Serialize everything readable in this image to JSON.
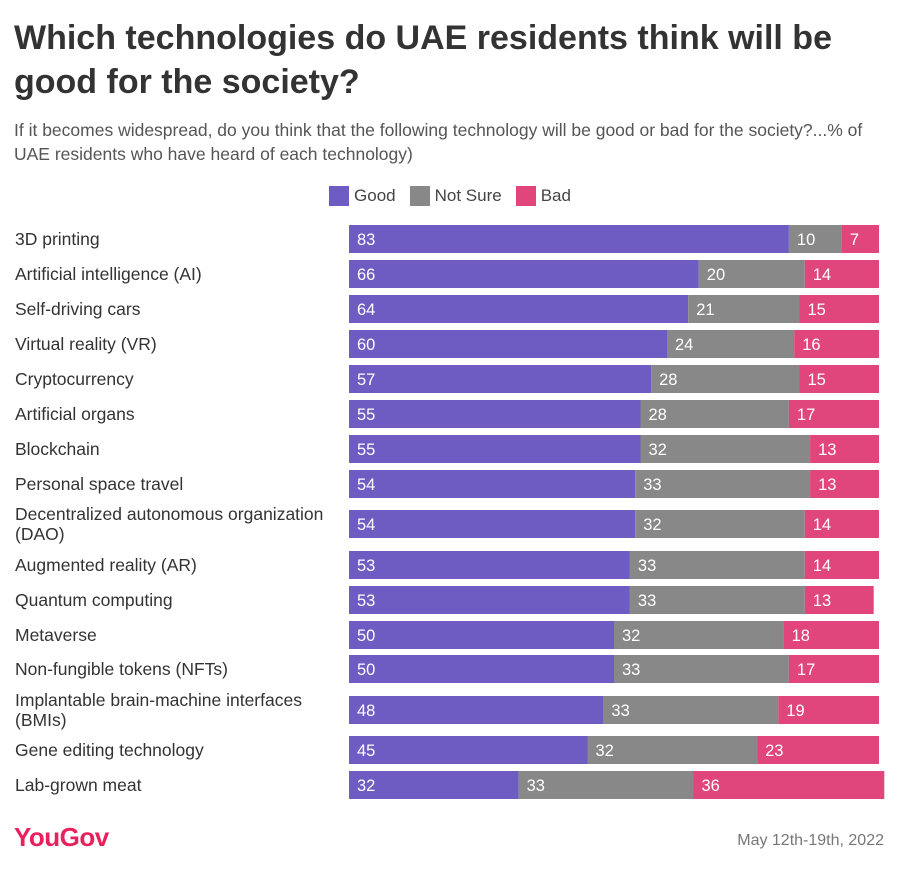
{
  "title": "Which technologies do UAE residents think will be good for the society?",
  "subtitle": "If it becomes widespread, do you think that the following technology will be good or bad for the society?...% of UAE residents who have heard of each technology)",
  "colors": {
    "good": "#6e5cc3",
    "not_sure": "#888888",
    "bad": "#e0457b"
  },
  "footer": {
    "logo": "YouGov",
    "date": "May 12th-19th, 2022"
  },
  "chart_data": {
    "type": "bar",
    "orientation": "horizontal",
    "stacked": true,
    "categories": [
      "3D printing",
      "Artificial intelligence (AI)",
      "Self-driving cars",
      "Virtual reality (VR)",
      "Cryptocurrency",
      "Artificial organs",
      "Blockchain",
      "Personal space travel",
      "Decentralized autonomous organization (DAO)",
      "Augmented reality (AR)",
      "Quantum computing",
      "Metaverse",
      "Non-fungible tokens (NFTs)",
      "Implantable brain-machine interfaces (BMIs)",
      "Gene editing technology",
      "Lab-grown meat"
    ],
    "series": [
      {
        "name": "Good",
        "color": "#6e5cc3",
        "values": [
          83,
          66,
          64,
          60,
          57,
          55,
          55,
          54,
          54,
          53,
          53,
          50,
          50,
          48,
          45,
          32
        ]
      },
      {
        "name": "Not Sure",
        "color": "#888888",
        "values": [
          10,
          20,
          21,
          24,
          28,
          28,
          32,
          33,
          32,
          33,
          33,
          32,
          33,
          33,
          32,
          33
        ]
      },
      {
        "name": "Bad",
        "color": "#e0457b",
        "values": [
          7,
          14,
          15,
          16,
          15,
          17,
          13,
          13,
          14,
          14,
          13,
          18,
          17,
          19,
          23,
          36
        ]
      }
    ],
    "legend_position": "top-center",
    "grid": false
  }
}
